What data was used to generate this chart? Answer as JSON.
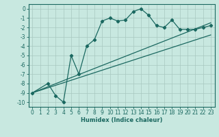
{
  "xlabel": "Humidex (Indice chaleur)",
  "bg_color": "#c8e8e0",
  "grid_color": "#a8c8c0",
  "line_color": "#1a6860",
  "xlim": [
    -0.5,
    23.5
  ],
  "ylim": [
    -10.5,
    0.5
  ],
  "yticks": [
    0,
    -1,
    -2,
    -3,
    -4,
    -5,
    -6,
    -7,
    -8,
    -9,
    -10
  ],
  "xticks": [
    0,
    1,
    2,
    3,
    4,
    5,
    6,
    7,
    8,
    9,
    10,
    11,
    12,
    13,
    14,
    15,
    16,
    17,
    18,
    19,
    20,
    21,
    22,
    23
  ],
  "line1_x": [
    0,
    2,
    3,
    4,
    5,
    6,
    7,
    8,
    9,
    10,
    11,
    12,
    13,
    14,
    15,
    16,
    17,
    18,
    19,
    20,
    21,
    22,
    23
  ],
  "line1_y": [
    -9.0,
    -8.0,
    -9.3,
    -10.0,
    -5.0,
    -7.0,
    -4.0,
    -3.3,
    -1.3,
    -1.0,
    -1.3,
    -1.2,
    -0.3,
    0.0,
    -0.7,
    -1.8,
    -2.0,
    -1.2,
    -2.2,
    -2.2,
    -2.2,
    -2.0,
    -1.8
  ],
  "line2_x": [
    0,
    23
  ],
  "line2_y": [
    -9.0,
    -1.5
  ],
  "line3_x": [
    0,
    23
  ],
  "line3_y": [
    -9.0,
    -2.8
  ],
  "marker": "D",
  "marker_size": 2.2,
  "linewidth": 0.9,
  "tick_fontsize": 5.5,
  "xlabel_fontsize": 6.0
}
